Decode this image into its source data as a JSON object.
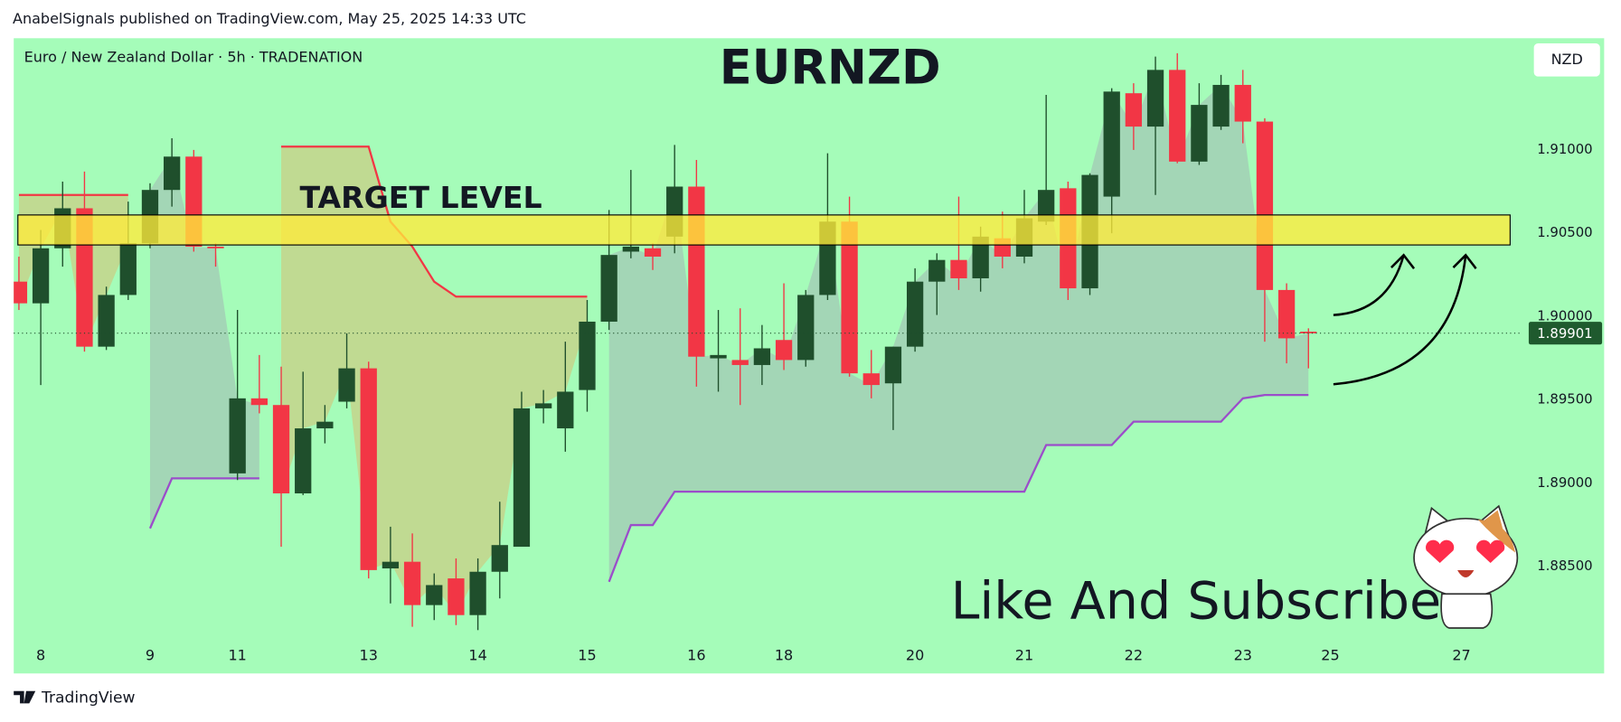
{
  "header": {
    "published": "AnabelSignals published on TradingView.com, May 25, 2025 14:33 UTC"
  },
  "footer": {
    "brand": "TradingView"
  },
  "chart_data": {
    "type": "candlestick",
    "title": "EURNZD",
    "subtitle": "Euro / New Zealand Dollar · 5h · TRADENATION",
    "currency": "NZD",
    "annotations": [
      "TARGET LEVEL",
      "Like And Subscribe"
    ],
    "background": "#a5fcb9",
    "up_color": "#1f4f2c",
    "down_color": "#f23645",
    "categories": [
      null,
      "8",
      null,
      null,
      null,
      null,
      "9",
      null,
      null,
      null,
      "11",
      null,
      null,
      null,
      null,
      null,
      "13",
      null,
      null,
      null,
      null,
      "14",
      null,
      null,
      null,
      null,
      "15",
      null,
      null,
      null,
      null,
      "16",
      null,
      null,
      null,
      "18",
      null,
      null,
      null,
      null,
      null,
      "20",
      null,
      null,
      null,
      null,
      "21",
      null,
      null,
      null,
      null,
      "22",
      null,
      null,
      null,
      null,
      "23",
      null,
      null,
      null,
      "25",
      null,
      null,
      null,
      null,
      null,
      "27",
      null,
      null
    ],
    "open": [
      1.9021,
      1.9008,
      1.9041,
      1.9065,
      1.8982,
      1.9013,
      1.9044,
      1.9076,
      1.9096,
      1.9042,
      1.8906,
      1.8951,
      1.8947,
      1.8894,
      1.8933,
      1.8949,
      1.8969,
      1.8849,
      1.8853,
      1.8827,
      1.8843,
      1.8821,
      1.8847,
      1.8862,
      1.8945,
      1.8933,
      1.8956,
      1.8997,
      1.9039,
      1.9041,
      1.9048,
      1.9078,
      1.8975,
      1.8974,
      1.8971,
      1.8986,
      1.8974,
      1.9013,
      1.9057,
      1.8966,
      1.896,
      1.8982,
      1.9021,
      1.9034,
      1.9023,
      1.9047,
      1.9036,
      1.9057,
      1.9077,
      1.9017,
      1.9072,
      1.9134,
      1.9114,
      1.9148,
      1.9093,
      1.9114,
      1.9139,
      1.9117,
      1.9016,
      1.8991,
      null,
      null,
      null,
      null,
      null,
      null,
      null,
      null,
      null
    ],
    "high": [
      1.9036,
      1.9052,
      1.9081,
      1.9087,
      1.9018,
      1.9069,
      1.908,
      1.9107,
      1.91,
      1.9044,
      1.9004,
      1.8977,
      1.897,
      1.8967,
      1.8947,
      1.899,
      1.8973,
      1.8874,
      1.887,
      1.8846,
      1.8855,
      1.8855,
      1.8889,
      1.8955,
      1.8956,
      1.8985,
      1.901,
      1.9064,
      1.9088,
      1.9044,
      1.9103,
      1.9094,
      1.9004,
      1.9005,
      1.8995,
      1.902,
      1.9016,
      1.9098,
      1.9072,
      1.898,
      1.8982,
      1.9029,
      1.9038,
      1.9072,
      1.9054,
      1.9063,
      1.9076,
      1.9133,
      1.9081,
      1.9086,
      1.9137,
      1.914,
      1.9156,
      1.9158,
      1.914,
      1.9145,
      1.9148,
      1.9119,
      1.902,
      1.8993,
      null,
      null,
      null,
      null,
      null,
      null,
      null,
      null,
      null
    ],
    "low": [
      1.9004,
      1.8959,
      1.903,
      1.8979,
      1.898,
      1.901,
      1.9041,
      1.9066,
      1.9039,
      1.903,
      1.8902,
      1.8942,
      1.8862,
      1.8893,
      1.8924,
      1.8945,
      1.8843,
      1.8828,
      1.8814,
      1.8818,
      1.8815,
      1.8812,
      1.8831,
      1.8862,
      1.8936,
      1.8919,
      1.8943,
      1.8992,
      1.9035,
      1.9028,
      1.9038,
      1.8958,
      1.8955,
      1.8947,
      1.8959,
      1.8968,
      1.897,
      1.901,
      1.8964,
      1.8951,
      1.8932,
      1.8979,
      1.9001,
      1.9016,
      1.9015,
      1.9029,
      1.9032,
      1.9055,
      1.901,
      1.9013,
      1.905,
      1.91,
      1.9073,
      1.9092,
      1.9091,
      1.9112,
      1.9104,
      1.8985,
      1.8972,
      1.8969,
      null,
      null,
      null,
      null,
      null,
      null,
      null,
      null,
      null
    ],
    "close": [
      1.9008,
      1.9041,
      1.9065,
      1.8982,
      1.9013,
      1.9044,
      1.9076,
      1.9096,
      1.9042,
      1.9041,
      1.8951,
      1.8947,
      1.8894,
      1.8933,
      1.8937,
      1.8969,
      1.8848,
      1.8853,
      1.8827,
      1.8839,
      1.8821,
      1.8847,
      1.8863,
      1.8945,
      1.8948,
      1.8955,
      1.8997,
      1.9037,
      1.9042,
      1.9036,
      1.9078,
      1.8976,
      1.8977,
      1.8971,
      1.8981,
      1.8974,
      1.9013,
      1.9057,
      1.8966,
      1.8959,
      1.8982,
      1.9021,
      1.9034,
      1.9023,
      1.9048,
      1.9036,
      1.9059,
      1.9076,
      1.9017,
      1.9085,
      1.9135,
      1.9114,
      1.9148,
      1.9093,
      1.9127,
      1.9139,
      1.9117,
      1.9016,
      1.8987,
      1.899,
      null,
      null,
      null,
      null,
      null,
      null,
      null,
      null,
      null
    ],
    "bands": [
      {
        "color": "#f23645",
        "fill": "#c9cf86",
        "values": [
          1.9073,
          1.9073,
          1.9073,
          1.9073,
          1.9073,
          1.9073,
          null,
          null,
          null,
          null,
          null,
          null,
          1.9102,
          1.9102,
          1.9102,
          1.9102,
          1.9102,
          1.9057,
          1.9042,
          1.9021,
          1.9012,
          1.9012,
          1.9012,
          1.9012,
          1.9012,
          1.9012,
          1.9012,
          null,
          null,
          null,
          null,
          null,
          null,
          null,
          null,
          null,
          null,
          null,
          null,
          null,
          null,
          null,
          null,
          null,
          null,
          null,
          null,
          null,
          null,
          null,
          null,
          null,
          null,
          null,
          null,
          null,
          null,
          null,
          null,
          null,
          null,
          null,
          null,
          null,
          null,
          null,
          null,
          null,
          null
        ]
      },
      {
        "color": "#9b4dca",
        "fill": "#a3c9b5",
        "values": [
          null,
          null,
          null,
          null,
          null,
          null,
          1.8873,
          1.8903,
          1.8903,
          1.8903,
          1.8903,
          1.8903,
          null,
          null,
          null,
          null,
          null,
          null,
          null,
          null,
          null,
          null,
          null,
          null,
          null,
          null,
          null,
          1.8841,
          1.8875,
          1.8875,
          1.8895,
          1.8895,
          1.8895,
          1.8895,
          1.8895,
          1.8895,
          1.8895,
          1.8895,
          1.8895,
          1.8895,
          1.8895,
          1.8895,
          1.8895,
          1.8895,
          1.8895,
          1.8895,
          1.8895,
          1.8923,
          1.8923,
          1.8923,
          1.8923,
          1.8937,
          1.8937,
          1.8937,
          1.8937,
          1.8937,
          1.8951,
          1.8953,
          1.8953,
          1.8953,
          null,
          null,
          null,
          null,
          null,
          null,
          null,
          null,
          null
        ]
      }
    ],
    "target_zone": [
      1.9043,
      1.9061
    ],
    "zone_color": "#ffeb3b",
    "last_price": {
      "value": 1.89901,
      "label": "1.89901"
    },
    "ylim": [
      1.8786,
      1.9167
    ],
    "yticks": [
      {
        "value": 1.885,
        "label": "1.88500"
      },
      {
        "value": 1.89,
        "label": "1.89000"
      },
      {
        "value": 1.895,
        "label": "1.89500"
      },
      {
        "value": 1.9,
        "label": "1.90000"
      },
      {
        "value": 1.905,
        "label": "1.90500"
      },
      {
        "value": 1.91,
        "label": "1.91000"
      }
    ],
    "grid": false
  }
}
